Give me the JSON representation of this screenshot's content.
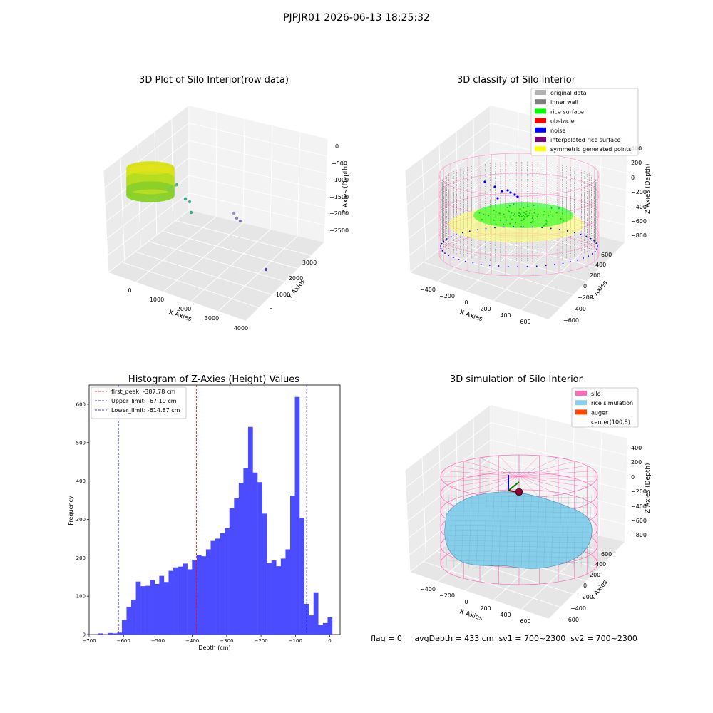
{
  "suptitle": "PJPJR01 2026-06-13 18:25:32",
  "status_line": {
    "flag": "flag = 0",
    "avg_depth": "avgDepth = 433 cm",
    "sv1": "sv1 = 700~2300",
    "sv2": "sv2 = 700~2300"
  },
  "colors": {
    "histogram_bar": "#4b4bff",
    "first_peak": "#ff0000",
    "limits": "#0000cc",
    "silo": "#ff69b4",
    "rice_simulation": "#87ceeb",
    "auger": "#ff4500",
    "original_data": "#b3b3b3",
    "inner_wall": "#808080",
    "rice_surface": "#00ff00",
    "obstacle": "#ff0000",
    "noise": "#0000ff",
    "interpolated_rice_surface": "#800080",
    "symmetric_generated_points": "#ffff00"
  },
  "chart_data": [
    {
      "type": "scatter",
      "projection": "3d",
      "title": "3D Plot of Silo Interior(row data)",
      "xlabel": "X Axies",
      "ylabel": "Y Axies",
      "zlabel": "Z Axies (Depth)",
      "x_ticks": [
        "0",
        "1000",
        "2000",
        "3000",
        "4000"
      ],
      "y_ticks": [
        "0",
        "1000",
        "2000",
        "3000"
      ],
      "z_ticks": [
        "0",
        "−500",
        "−1000",
        "−1500",
        "−2000",
        "−2500"
      ],
      "outlier_points": [
        {
          "x": 1050,
          "y": 3000,
          "z": -1200
        },
        {
          "x": 1400,
          "y": 2900,
          "z": -1500
        },
        {
          "x": 1500,
          "y": 2850,
          "z": -1550
        },
        {
          "x": 1700,
          "y": 2400,
          "z": -1850
        },
        {
          "x": 2700,
          "y": 2600,
          "z": -1950
        },
        {
          "x": 2900,
          "y": 2500,
          "z": -2050
        },
        {
          "x": 3050,
          "y": 2450,
          "z": -2100
        },
        {
          "x": 3900,
          "y": 1200,
          "z": -2600
        }
      ]
    },
    {
      "type": "scatter",
      "projection": "3d",
      "title": "3D classify of Silo Interior",
      "xlabel": "X Axies",
      "ylabel": "Y Axies",
      "zlabel": "Z Axies (Depth)",
      "x_ticks": [
        "−400",
        "−200",
        "0",
        "200",
        "400",
        "600"
      ],
      "y_ticks": [
        "−600",
        "−400",
        "−200",
        "0",
        "200",
        "400",
        "600"
      ],
      "z_ticks": [
        "−800",
        "−600",
        "−400",
        "−200",
        "0",
        "200",
        "400"
      ],
      "legend": [
        {
          "label": "original data",
          "color": "#b3b3b3"
        },
        {
          "label": "inner wall",
          "color": "#808080"
        },
        {
          "label": "rice surface",
          "color": "#00ff00"
        },
        {
          "label": "obstacle",
          "color": "#ff0000"
        },
        {
          "label": "noise",
          "color": "#0000ff"
        },
        {
          "label": "interpolated rice surface",
          "color": "#800080"
        },
        {
          "label": "symmetric generated points",
          "color": "#ffff00"
        }
      ],
      "legend_loc": "upper right"
    },
    {
      "type": "bar",
      "title": "Histogram of Z-Axies (Height) Values",
      "xlabel": "Depth (cm)",
      "ylabel": "Frequency",
      "xlim": [
        -700,
        30
      ],
      "ylim": [
        0,
        650
      ],
      "x_ticks": [
        -700,
        -600,
        -500,
        -400,
        -300,
        -200,
        -100,
        0
      ],
      "y_ticks": [
        0,
        100,
        200,
        300,
        400,
        500,
        600
      ],
      "bin_start": -700,
      "bin_width": 13.6,
      "values": [
        1,
        1,
        3,
        1,
        4,
        3,
        5,
        38,
        72,
        91,
        138,
        126,
        127,
        142,
        132,
        153,
        137,
        166,
        175,
        177,
        185,
        170,
        195,
        207,
        204,
        222,
        244,
        250,
        264,
        277,
        329,
        355,
        395,
        434,
        541,
        422,
        397,
        315,
        186,
        193,
        178,
        198,
        222,
        362,
        619,
        304,
        80,
        50,
        110,
        25,
        30,
        45
      ],
      "vlines": [
        {
          "label": "first_peak: -387.78 cm",
          "x": -387.78,
          "color": "#ff0000"
        },
        {
          "label": "Upper_limit: -67.19 cm",
          "x": -67.19,
          "color": "#0000cc"
        },
        {
          "label": "Lower_limit: -614.87 cm",
          "x": -614.87,
          "color": "#0000cc"
        }
      ],
      "legend_loc": "upper left"
    },
    {
      "type": "surface",
      "projection": "3d",
      "title": "3D simulation of Silo Interior",
      "xlabel": "X Axies",
      "ylabel": "Y Axies",
      "zlabel": "Z Axies (Depth)",
      "x_ticks": [
        "−400",
        "−200",
        "0",
        "200",
        "400",
        "600"
      ],
      "y_ticks": [
        "−600",
        "−400",
        "−200",
        "0",
        "200",
        "400",
        "600"
      ],
      "z_ticks": [
        "−800",
        "−600",
        "−400",
        "−200",
        "0",
        "200",
        "400"
      ],
      "legend": [
        {
          "label": "silo",
          "color": "#ff69b4"
        },
        {
          "label": "rice simulation",
          "color": "#87ceeb"
        },
        {
          "label": "auger",
          "color": "#ff4500"
        },
        {
          "label": "center(100,8)",
          "color": ""
        }
      ],
      "legend_loc": "upper right"
    }
  ]
}
